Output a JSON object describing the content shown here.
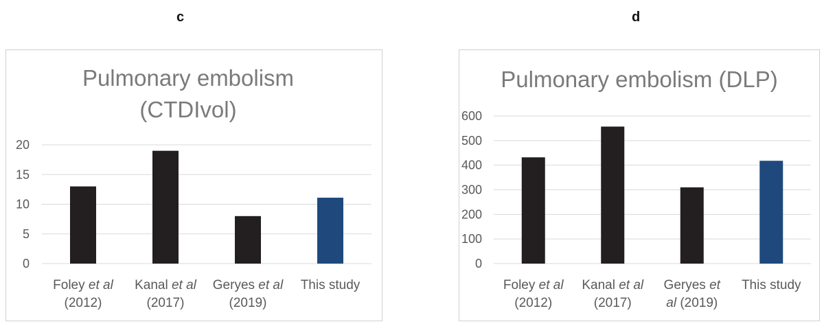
{
  "panels": [
    "c",
    "d"
  ],
  "chart_data": [
    {
      "type": "bar",
      "title_lines": [
        "Pulmonary embolism",
        "(CTDIvol)"
      ],
      "categories": [
        [
          {
            "t": "Foley "
          },
          {
            "t": "et al",
            "i": true
          }
        ],
        [
          {
            "t": "Kanal "
          },
          {
            "t": "et al",
            "i": true
          }
        ],
        [
          {
            "t": "Geryes "
          },
          {
            "t": "et al",
            "i": true
          }
        ],
        [
          {
            "t": "This study"
          }
        ]
      ],
      "categories_line2": [
        [
          {
            "t": "(2012)"
          }
        ],
        [
          {
            "t": "(2017)"
          }
        ],
        [
          {
            "t": "(2019)"
          }
        ],
        []
      ],
      "values": [
        13,
        19,
        8,
        11.1
      ],
      "bar_colors": [
        "#231f20",
        "#231f20",
        "#231f20",
        "#1f497d"
      ],
      "ylim": [
        0,
        20
      ],
      "yticks": [
        0,
        5,
        10,
        15,
        20
      ],
      "grid": true,
      "xlabel": "",
      "ylabel": ""
    },
    {
      "type": "bar",
      "title_lines": [
        "Pulmonary embolism (DLP)"
      ],
      "categories": [
        [
          {
            "t": "Foley "
          },
          {
            "t": "et al",
            "i": true
          }
        ],
        [
          {
            "t": "Kanal "
          },
          {
            "t": "et al",
            "i": true
          }
        ],
        [
          {
            "t": "Geryes "
          },
          {
            "t": "et",
            "i": true
          }
        ],
        [
          {
            "t": "This study"
          }
        ]
      ],
      "categories_line2": [
        [
          {
            "t": "(2012)"
          }
        ],
        [
          {
            "t": "(2017)"
          }
        ],
        [
          {
            "t": "al",
            "i": true
          },
          {
            "t": " (2019)"
          }
        ],
        []
      ],
      "values": [
        432,
        557,
        310,
        418
      ],
      "bar_colors": [
        "#231f20",
        "#231f20",
        "#231f20",
        "#1f497d"
      ],
      "ylim": [
        0,
        600
      ],
      "yticks": [
        0,
        100,
        200,
        300,
        400,
        500,
        600
      ],
      "grid": true,
      "xlabel": "",
      "ylabel": ""
    }
  ]
}
